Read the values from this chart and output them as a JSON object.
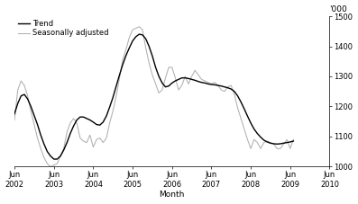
{
  "xlabel": "Month",
  "ylabel_right": "'000",
  "ylim": [
    1000,
    1500
  ],
  "yticks": [
    1000,
    1100,
    1200,
    1300,
    1400,
    1500
  ],
  "trend_color": "#000000",
  "seasonal_color": "#b0b0b0",
  "background_color": "#ffffff",
  "legend_labels": [
    "Trend",
    "Seasonally adjusted"
  ],
  "x_tick_labels": [
    "Jun\n2002",
    "Jun\n2003",
    "Jun\n2004",
    "Jun\n2005",
    "Jun\n2006",
    "Jun\n2007",
    "Jun\n2008",
    "Jun\n2009",
    "Jun\n2010"
  ],
  "trend_data": [
    1175,
    1210,
    1235,
    1240,
    1225,
    1200,
    1170,
    1140,
    1105,
    1075,
    1050,
    1035,
    1025,
    1025,
    1035,
    1055,
    1080,
    1110,
    1135,
    1155,
    1165,
    1165,
    1160,
    1155,
    1148,
    1140,
    1138,
    1148,
    1168,
    1198,
    1230,
    1268,
    1305,
    1340,
    1370,
    1395,
    1418,
    1432,
    1440,
    1438,
    1425,
    1400,
    1368,
    1330,
    1300,
    1278,
    1265,
    1268,
    1278,
    1285,
    1290,
    1295,
    1295,
    1293,
    1290,
    1287,
    1283,
    1280,
    1278,
    1275,
    1273,
    1272,
    1270,
    1268,
    1265,
    1262,
    1258,
    1250,
    1235,
    1215,
    1192,
    1168,
    1145,
    1125,
    1110,
    1098,
    1088,
    1082,
    1078,
    1076,
    1075,
    1076,
    1078,
    1080,
    1082,
    1085
  ],
  "seasonal_data": [
    1155,
    1255,
    1285,
    1270,
    1235,
    1185,
    1140,
    1095,
    1060,
    1030,
    1010,
    1000,
    1005,
    1010,
    1035,
    1060,
    1115,
    1145,
    1160,
    1145,
    1095,
    1085,
    1080,
    1105,
    1065,
    1090,
    1095,
    1080,
    1095,
    1145,
    1185,
    1235,
    1295,
    1355,
    1390,
    1430,
    1455,
    1460,
    1465,
    1455,
    1395,
    1345,
    1305,
    1275,
    1245,
    1255,
    1295,
    1330,
    1330,
    1295,
    1255,
    1270,
    1300,
    1275,
    1300,
    1320,
    1305,
    1290,
    1285,
    1280,
    1275,
    1280,
    1270,
    1255,
    1250,
    1265,
    1270,
    1240,
    1195,
    1160,
    1125,
    1090,
    1060,
    1090,
    1080,
    1060,
    1080,
    1085,
    1080,
    1075,
    1060,
    1060,
    1075,
    1090,
    1060,
    1090
  ]
}
